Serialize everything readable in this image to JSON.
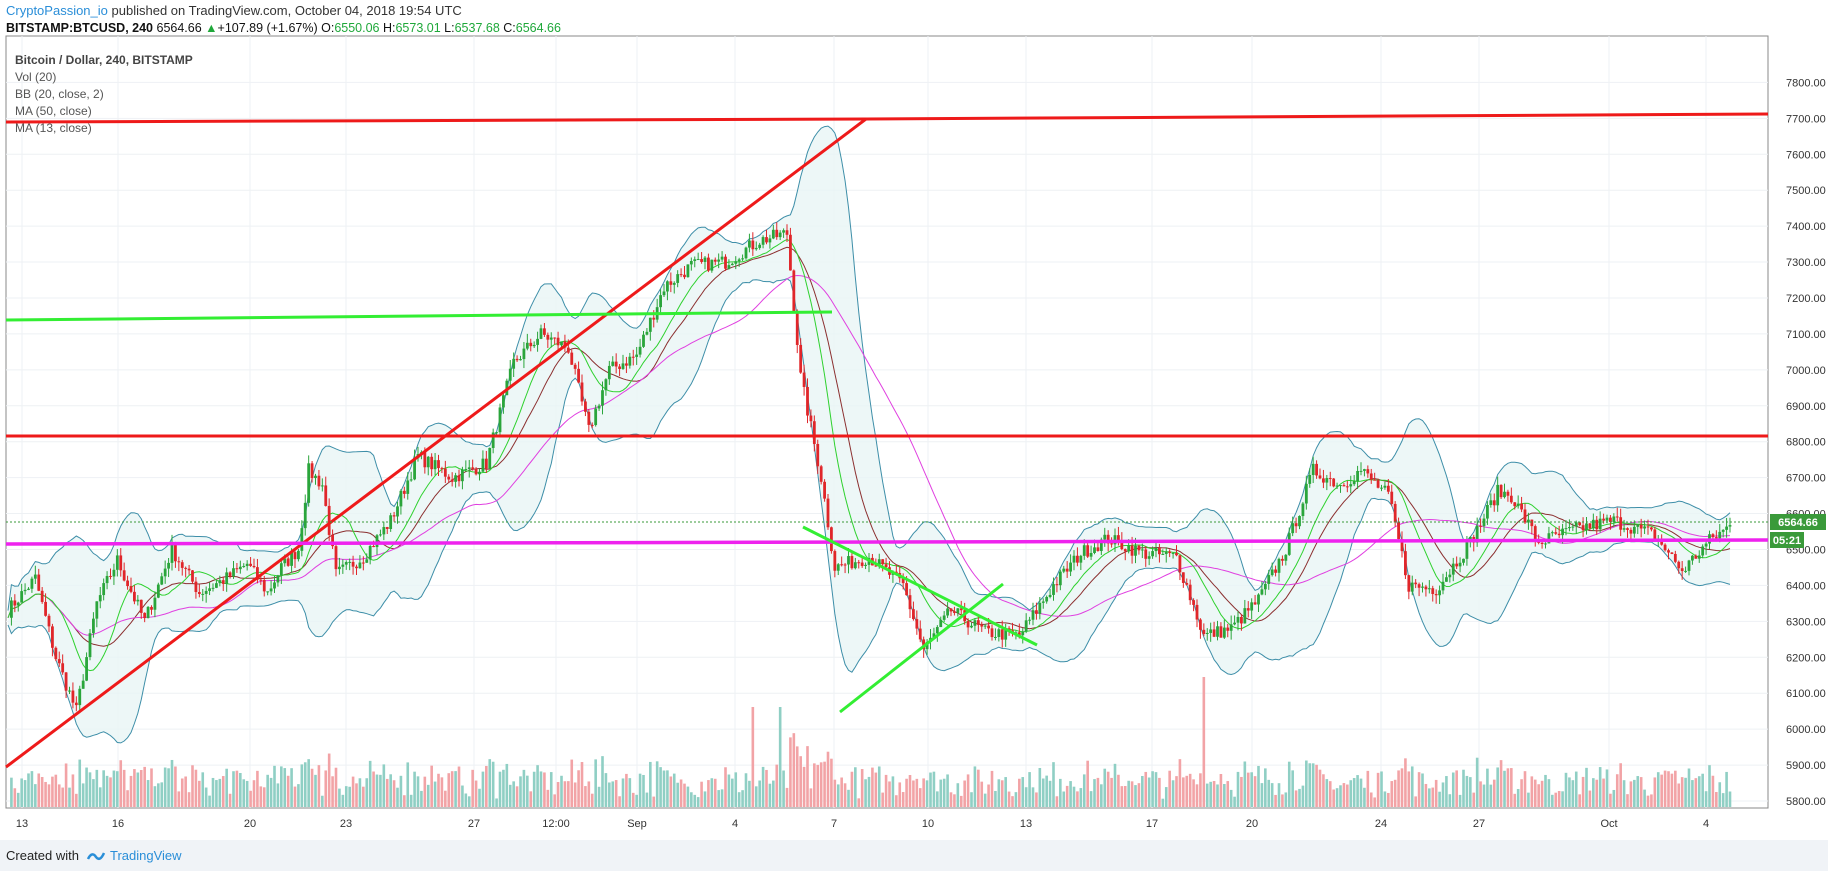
{
  "header": {
    "author": "CryptoPassion_io",
    "published": "published on TradingView.com, October 04, 2018 19:54 UTC",
    "symbol": "BITSTAMP:BTCUSD, 240",
    "last": "6564.66",
    "change": "+107.89 (+1.67%)",
    "open_label": "O:",
    "open": "6550.06",
    "high_label": "H:",
    "high": "6573.01",
    "low_label": "L:",
    "low": "6537.68",
    "close_label": "C:",
    "close": "6564.66"
  },
  "legend": {
    "title": "Bitcoin / Dollar, 240, BITSTAMP",
    "indicators": [
      "Vol (20)",
      "BB (20, close, 2)",
      "MA (50, close)",
      "MA (13, close)"
    ]
  },
  "footer": {
    "created_with": "Created with",
    "brand": "TradingView"
  },
  "colors": {
    "up": "#2aa53b",
    "down": "#e0262a",
    "vol_up": "#8fcfc4",
    "vol_down": "#f2a3a6",
    "bb": "#3d8ea8",
    "bb_fill": "#e8f5f5",
    "ma50": "#e040e0",
    "ma13": "#2ed12e",
    "ma_mid": "#8b2f2f",
    "trend_red": "#ee1a1a",
    "trend_green": "#33ee33",
    "trend_magenta": "#ee22ee",
    "price_tag": "#3a9a3a"
  },
  "chart_data": {
    "type": "candlestick",
    "y_ticks": [
      "7800.00",
      "7700.00",
      "7600.00",
      "7500.00",
      "7400.00",
      "7300.00",
      "7200.00",
      "7100.00",
      "7000.00",
      "6900.00",
      "6800.00",
      "6700.00",
      "6600.00",
      "6500.00",
      "6400.00",
      "6300.00",
      "6200.00",
      "6100.00",
      "6000.00",
      "5900.00",
      "5800.00"
    ],
    "x_ticks": [
      "13",
      "16",
      "20",
      "23",
      "27",
      "12:00",
      "Sep",
      "4",
      "7",
      "10",
      "13",
      "17",
      "20",
      "24",
      "27",
      "Oct",
      "4"
    ],
    "price_label": "6564.66",
    "countdown": "05:21",
    "price_range": [
      5770,
      7850
    ],
    "key_levels": {
      "resistance_top": 7700,
      "resistance_mid": 6800,
      "support_magenta": 6510,
      "green_level": 7150
    },
    "price_path_anchors": [
      [
        0,
        6330
      ],
      [
        8,
        6420
      ],
      [
        14,
        6200
      ],
      [
        20,
        6050
      ],
      [
        26,
        6350
      ],
      [
        32,
        6470
      ],
      [
        40,
        6300
      ],
      [
        48,
        6500
      ],
      [
        56,
        6380
      ],
      [
        64,
        6420
      ],
      [
        70,
        6460
      ],
      [
        76,
        6380
      ],
      [
        80,
        6450
      ],
      [
        85,
        6500
      ],
      [
        88,
        6720
      ],
      [
        92,
        6680
      ],
      [
        96,
        6430
      ],
      [
        104,
        6480
      ],
      [
        112,
        6580
      ],
      [
        120,
        6760
      ],
      [
        130,
        6700
      ],
      [
        140,
        6740
      ],
      [
        148,
        7020
      ],
      [
        156,
        7100
      ],
      [
        164,
        7060
      ],
      [
        170,
        6830
      ],
      [
        176,
        7000
      ],
      [
        184,
        7040
      ],
      [
        192,
        7230
      ],
      [
        200,
        7290
      ],
      [
        210,
        7300
      ],
      [
        220,
        7360
      ],
      [
        228,
        7380
      ],
      [
        232,
        6980
      ],
      [
        238,
        6700
      ],
      [
        242,
        6450
      ],
      [
        252,
        6480
      ],
      [
        262,
        6400
      ],
      [
        268,
        6220
      ],
      [
        276,
        6330
      ],
      [
        286,
        6270
      ],
      [
        296,
        6260
      ],
      [
        306,
        6400
      ],
      [
        314,
        6490
      ],
      [
        322,
        6530
      ],
      [
        332,
        6490
      ],
      [
        342,
        6480
      ],
      [
        350,
        6260
      ],
      [
        358,
        6280
      ],
      [
        366,
        6360
      ],
      [
        374,
        6500
      ],
      [
        382,
        6720
      ],
      [
        390,
        6680
      ],
      [
        396,
        6720
      ],
      [
        404,
        6650
      ],
      [
        410,
        6400
      ],
      [
        418,
        6390
      ],
      [
        428,
        6520
      ],
      [
        436,
        6660
      ],
      [
        440,
        6650
      ],
      [
        448,
        6520
      ],
      [
        460,
        6560
      ],
      [
        470,
        6580
      ],
      [
        482,
        6540
      ],
      [
        490,
        6440
      ],
      [
        498,
        6525
      ],
      [
        504,
        6565
      ]
    ],
    "volume_scale": "relative"
  }
}
